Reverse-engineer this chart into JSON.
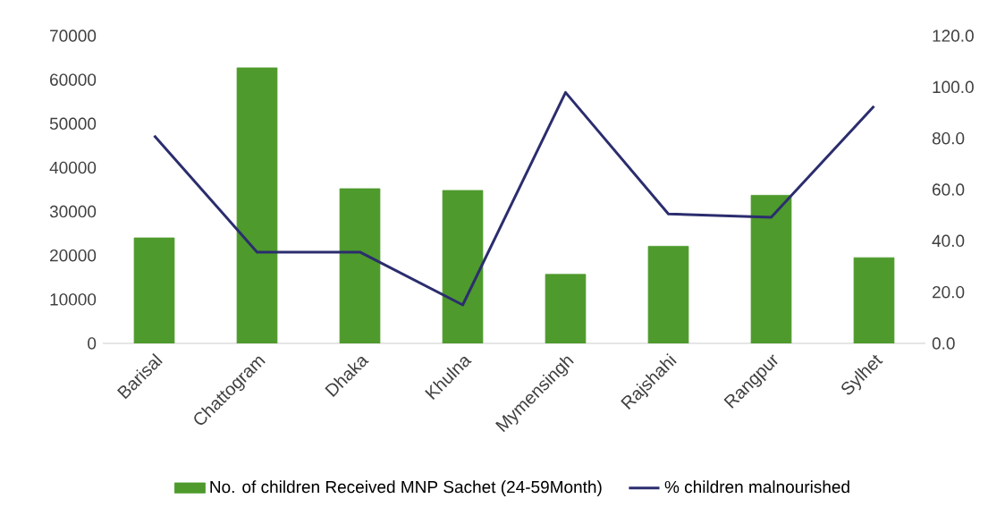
{
  "chart_data": {
    "type": "bar",
    "categories": [
      "Barisal",
      "Chattogram",
      "Dhaka",
      "Khulna",
      "Mymensingh",
      "Rajshahi",
      "Rangpur",
      "Sylhet"
    ],
    "series": [
      {
        "name": "No. of children Received MNP Sachet (24-59Month)",
        "color": "#4e9a2c",
        "values": [
          24000,
          62700,
          35200,
          34800,
          15700,
          22100,
          33700,
          19500
        ]
      },
      {
        "name": "% children malnourished",
        "type": "line",
        "axis": "y2",
        "color": "#2b2d6e",
        "values": [
          81,
          35.6,
          35.6,
          15,
          97.9,
          50.5,
          49.2,
          92.5
        ]
      }
    ],
    "ylim": [
      0,
      70000
    ],
    "yticks": [
      0,
      10000,
      20000,
      30000,
      40000,
      50000,
      60000,
      70000
    ],
    "y2lim": [
      0,
      120
    ],
    "y2ticks": [
      {
        "value": 0,
        "label": "0.0"
      },
      {
        "value": 20,
        "label": "20.0"
      },
      {
        "value": 40,
        "label": "40.0"
      },
      {
        "value": 60,
        "label": "60.0"
      },
      {
        "value": 80,
        "label": "80.0"
      },
      {
        "value": 100,
        "label": "100.0"
      },
      {
        "value": 120,
        "label": "120.0"
      }
    ],
    "legend": "bottom"
  }
}
